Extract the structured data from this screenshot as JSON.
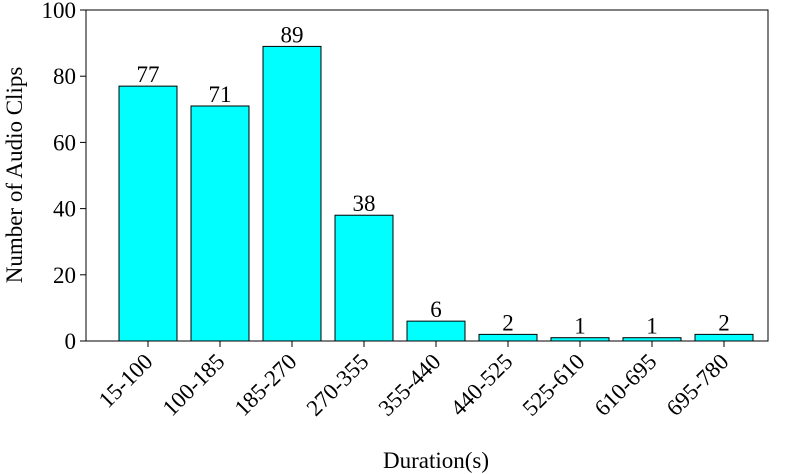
{
  "chart_data": {
    "type": "bar",
    "xlabel": "Duration(s)",
    "ylabel": "Number of Audio Clips",
    "categories": [
      "15-100",
      "100-185",
      "185-270",
      "270-355",
      "355-440",
      "440-525",
      "525-610",
      "610-695",
      "695-780"
    ],
    "values": [
      77,
      71,
      89,
      38,
      6,
      2,
      1,
      1,
      2
    ],
    "color": "#00ffff",
    "edgecolor": "#000000",
    "ylim": [
      0,
      100
    ],
    "yticks": [
      0,
      20,
      40,
      60,
      80,
      100
    ],
    "grid": false
  }
}
